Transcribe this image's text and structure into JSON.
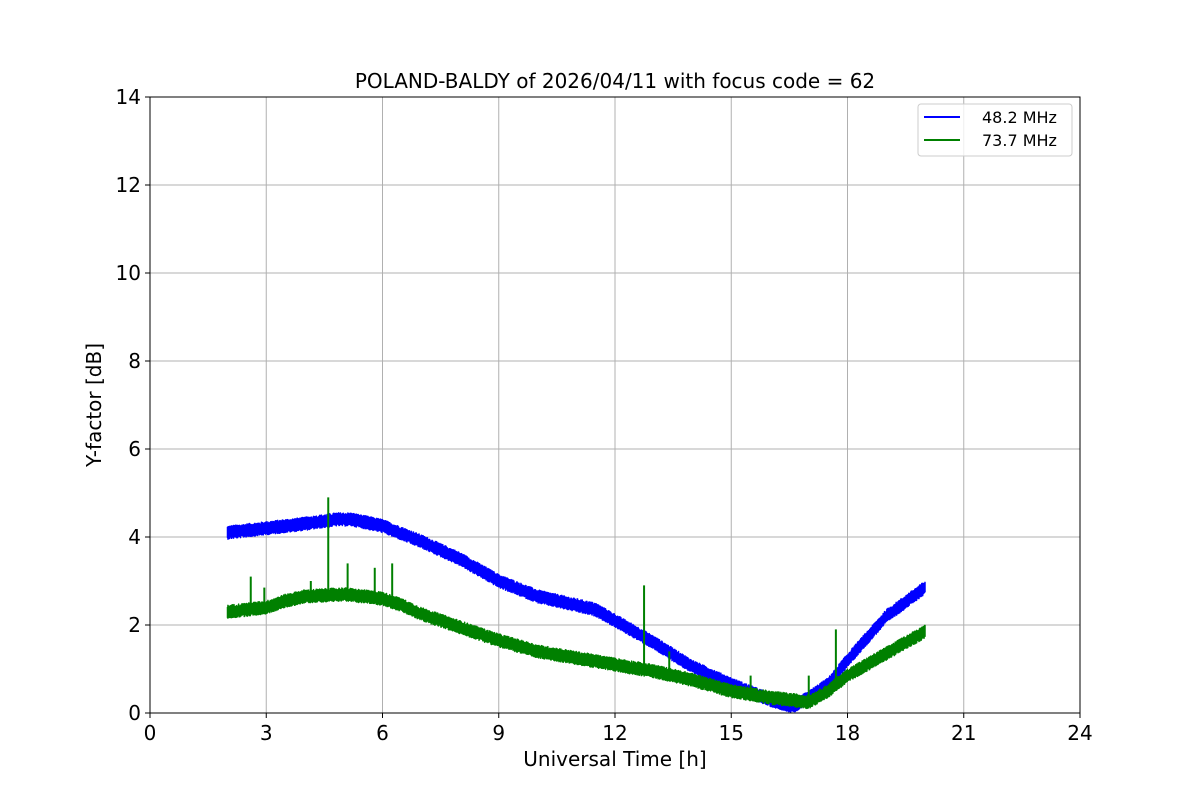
{
  "chart_data": {
    "type": "line",
    "title": "POLAND-BALDY of 2026/04/11 with focus code = 62",
    "xlabel": "Universal Time [h]",
    "ylabel": "Y-factor [dB]",
    "xlim": [
      0,
      24
    ],
    "ylim": [
      0,
      14
    ],
    "xticks": [
      0,
      3,
      6,
      9,
      12,
      15,
      18,
      21,
      24
    ],
    "yticks": [
      0,
      2,
      4,
      6,
      8,
      10,
      12,
      14
    ],
    "grid": true,
    "legend_position": "top-right",
    "series": [
      {
        "name": "48.2 MHz",
        "color": "#0000ff",
        "band_width": 0.3,
        "x": [
          2.0,
          3.0,
          4.0,
          4.8,
          5.2,
          6.0,
          7.0,
          8.0,
          9.0,
          10.0,
          11.0,
          11.5,
          12.0,
          13.0,
          14.0,
          15.0,
          16.0,
          16.6,
          17.0,
          17.5,
          18.0,
          19.0,
          20.0
        ],
        "y": [
          4.1,
          4.2,
          4.3,
          4.4,
          4.4,
          4.25,
          3.9,
          3.5,
          3.0,
          2.65,
          2.45,
          2.35,
          2.1,
          1.6,
          1.05,
          0.65,
          0.3,
          0.15,
          0.35,
          0.65,
          1.2,
          2.2,
          2.85
        ],
        "spikes": []
      },
      {
        "name": "73.7 MHz",
        "color": "#008000",
        "band_width": 0.3,
        "x": [
          2.0,
          3.0,
          3.5,
          4.0,
          5.0,
          6.0,
          6.5,
          7.0,
          8.0,
          9.0,
          10.0,
          11.0,
          12.0,
          13.0,
          14.0,
          15.0,
          16.0,
          17.0,
          17.5,
          18.0,
          19.0,
          20.0
        ],
        "y": [
          2.3,
          2.4,
          2.55,
          2.65,
          2.7,
          2.6,
          2.45,
          2.25,
          1.95,
          1.65,
          1.4,
          1.25,
          1.1,
          0.95,
          0.75,
          0.5,
          0.35,
          0.25,
          0.5,
          0.85,
          1.35,
          1.85
        ],
        "spikes": [
          {
            "x": 2.6,
            "y": 3.1
          },
          {
            "x": 2.95,
            "y": 2.85
          },
          {
            "x": 4.15,
            "y": 3.0
          },
          {
            "x": 4.6,
            "y": 4.9
          },
          {
            "x": 5.1,
            "y": 3.4
          },
          {
            "x": 5.8,
            "y": 3.3
          },
          {
            "x": 6.25,
            "y": 3.4
          },
          {
            "x": 12.75,
            "y": 2.9
          },
          {
            "x": 13.4,
            "y": 1.4
          },
          {
            "x": 15.5,
            "y": 0.85
          },
          {
            "x": 17.0,
            "y": 0.85
          },
          {
            "x": 17.7,
            "y": 1.9
          }
        ]
      }
    ]
  }
}
